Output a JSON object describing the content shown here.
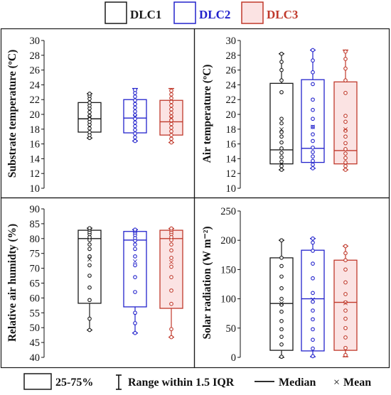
{
  "legend_top": {
    "items": [
      {
        "label": "DLC1",
        "color": "#1a1a1a"
      },
      {
        "label": "DLC2",
        "color": "#2222cc"
      },
      {
        "label": "DLC3",
        "color": "#c0392b"
      }
    ]
  },
  "legend_bottom": {
    "box_label": "25-75%",
    "whisker_label": "Range within 1.5 IQR",
    "median_label": "Median",
    "mean_label": "Mean",
    "mean_symbol": "×"
  },
  "colors": {
    "dlc1": "#1a1a1a",
    "dlc2": "#2222cc",
    "dlc3": "#c0392b",
    "dlc3_fill": "#fbe3e3"
  },
  "chart_data": [
    {
      "type": "box",
      "ylabel": "Substrate temperature (ºC)",
      "ylim": [
        10,
        30
      ],
      "yticks": [
        10,
        12,
        14,
        16,
        18,
        20,
        22,
        24,
        26,
        28,
        30
      ],
      "series": [
        {
          "name": "DLC1",
          "whisker_low": 16.8,
          "q1": 17.6,
          "median": 19.4,
          "q3": 21.6,
          "whisker_high": 22.8,
          "mean": 19.6,
          "points": [
            16.8,
            17.2,
            17.6,
            18.1,
            18.6,
            19.0,
            19.4,
            19.8,
            20.3,
            20.8,
            21.2,
            21.6,
            22.1,
            22.5,
            22.8
          ]
        },
        {
          "name": "DLC2",
          "whisker_low": 16.4,
          "q1": 17.5,
          "median": 19.5,
          "q3": 22.0,
          "whisker_high": 23.5,
          "mean": 19.7,
          "points": [
            16.4,
            16.9,
            17.4,
            17.9,
            18.4,
            18.9,
            19.4,
            19.9,
            20.4,
            20.9,
            21.4,
            21.9,
            22.4,
            22.9,
            23.3
          ]
        },
        {
          "name": "DLC3",
          "whisker_low": 16.2,
          "q1": 17.2,
          "median": 19.0,
          "q3": 21.9,
          "whisker_high": 23.5,
          "mean": 19.5,
          "points": [
            16.2,
            16.7,
            17.2,
            17.7,
            18.2,
            18.7,
            19.2,
            19.7,
            20.2,
            20.7,
            21.2,
            21.7,
            22.2,
            22.7,
            23.2
          ]
        }
      ]
    },
    {
      "type": "box",
      "ylabel": "Air temperature (ºC)",
      "ylim": [
        10,
        30
      ],
      "yticks": [
        10,
        12,
        14,
        16,
        18,
        20,
        22,
        24,
        26,
        28,
        30
      ],
      "series": [
        {
          "name": "DLC1",
          "whisker_low": 12.5,
          "q1": 13.3,
          "median": 15.2,
          "q3": 24.2,
          "whisker_high": 28.2,
          "mean": 18.0,
          "points": [
            12.5,
            13.0,
            13.6,
            14.2,
            14.8,
            15.4,
            16.2,
            17.0,
            17.6,
            18.8,
            19.4,
            23.0,
            24.6,
            26.0,
            27.1,
            28.2
          ]
        },
        {
          "name": "DLC2",
          "whisker_low": 12.7,
          "q1": 13.5,
          "median": 15.4,
          "q3": 24.7,
          "whisker_high": 28.7,
          "mean": 18.3,
          "points": [
            12.7,
            13.2,
            13.7,
            14.3,
            14.9,
            15.5,
            16.4,
            17.3,
            18.3,
            19.4,
            20.6,
            22.0,
            24.1,
            25.7,
            27.3,
            28.7
          ]
        },
        {
          "name": "DLC3",
          "whisker_low": 12.5,
          "q1": 13.3,
          "median": 15.1,
          "q3": 24.4,
          "whisker_high": 28.7,
          "mean": 18.0,
          "points": [
            12.5,
            13.0,
            13.5,
            14.1,
            14.7,
            15.3,
            16.1,
            17.0,
            17.8,
            19.0,
            19.8,
            22.9,
            24.6,
            26.2,
            27.5,
            28.5
          ]
        }
      ]
    },
    {
      "type": "box",
      "ylabel": "Relative air humidty (%)",
      "ylim": [
        40,
        90
      ],
      "yticks": [
        40,
        45,
        50,
        55,
        60,
        65,
        70,
        75,
        80,
        85,
        90
      ],
      "series": [
        {
          "name": "DLC1",
          "whisker_low": 49.2,
          "q1": 58.2,
          "median": 80.0,
          "q3": 82.8,
          "whisker_high": 83.5,
          "mean": 73.0,
          "points": [
            49.2,
            53.0,
            59.3,
            63.5,
            67.5,
            71.0,
            74.0,
            76.5,
            78.0,
            79.5,
            80.5,
            81.5,
            82.2,
            83.0,
            83.5
          ]
        },
        {
          "name": "DLC2",
          "whisker_low": 48.2,
          "q1": 57.0,
          "median": 79.5,
          "q3": 82.4,
          "whisker_high": 83.0,
          "mean": 72.3,
          "points": [
            48.2,
            51.5,
            55.0,
            62.0,
            67.0,
            71.0,
            74.0,
            76.5,
            78.0,
            79.3,
            80.2,
            81.2,
            82.0,
            82.6,
            83.0
          ]
        },
        {
          "name": "DLC3",
          "whisker_low": 46.8,
          "q1": 56.5,
          "median": 80.0,
          "q3": 82.8,
          "whisker_high": 83.4,
          "mean": 72.0,
          "points": [
            46.8,
            49.5,
            58.0,
            62.5,
            67.0,
            70.5,
            73.5,
            76.0,
            78.0,
            79.5,
            80.5,
            81.5,
            82.2,
            82.9,
            83.4
          ]
        }
      ]
    },
    {
      "type": "box",
      "ylabel": "Solar radiation (W m⁻²)",
      "ylim": [
        0,
        250
      ],
      "yticks": [
        0,
        50,
        100,
        150,
        200,
        250
      ],
      "series": [
        {
          "name": "DLC1",
          "whisker_low": 0,
          "q1": 12,
          "median": 92,
          "q3": 170,
          "whisker_high": 200,
          "mean": 92,
          "points": [
            1,
            22,
            35,
            48,
            62,
            78,
            90,
            100,
            118,
            138,
            156,
            170,
            200
          ]
        },
        {
          "name": "DLC2",
          "whisker_low": 1,
          "q1": 11,
          "median": 100,
          "q3": 183,
          "whisker_high": 203,
          "mean": 99,
          "points": [
            2,
            15,
            30,
            48,
            65,
            80,
            95,
            110,
            135,
            160,
            182,
            196,
            203
          ]
        },
        {
          "name": "DLC3",
          "whisker_low": 1,
          "q1": 12,
          "median": 94,
          "q3": 166,
          "whisker_high": 190,
          "mean": 93,
          "points": [
            4,
            16,
            34,
            50,
            66,
            80,
            94,
            108,
            128,
            150,
            166,
            178,
            190
          ]
        }
      ]
    }
  ]
}
